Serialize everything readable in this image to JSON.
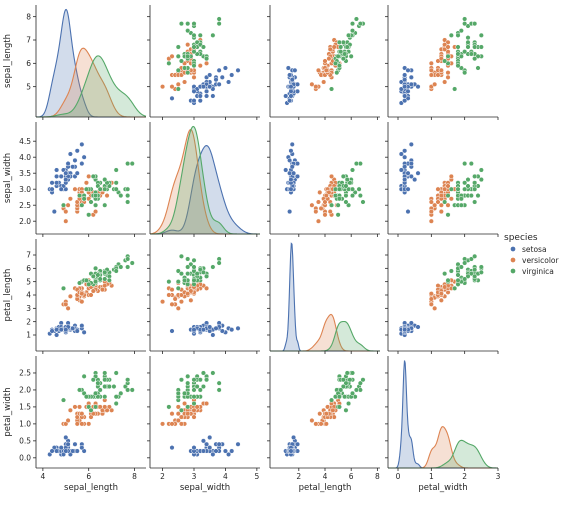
{
  "chart_data": {
    "type": "pairplot",
    "variables": [
      "sepal_length",
      "sepal_width",
      "petal_length",
      "petal_width"
    ],
    "axis_ticks": {
      "sepal_length": [
        4,
        6,
        8
      ],
      "sepal_width": [
        2,
        3,
        4,
        5
      ],
      "petal_length": [
        2,
        4,
        6,
        8
      ],
      "petal_width": [
        0,
        1,
        2,
        3
      ]
    },
    "axis_ticks_y": {
      "sepal_length": [
        5,
        6,
        7,
        8
      ],
      "sepal_width": [
        2.0,
        2.5,
        3.0,
        3.5,
        4.0,
        4.5
      ],
      "petal_length": [
        1,
        2,
        3,
        4,
        5,
        6,
        7
      ],
      "petal_width": [
        0.0,
        0.5,
        1.0,
        1.5,
        2.0,
        2.5
      ]
    },
    "axis_ranges": {
      "sepal_length": [
        3.7,
        8.5
      ],
      "sepal_width": [
        1.6,
        5.1
      ],
      "petal_length": [
        -0.2,
        8.2
      ],
      "petal_width": [
        -0.3,
        3.0
      ]
    },
    "diagonal_kind": "kde",
    "offdiagonal_kind": "scatter",
    "legend": {
      "title": "species",
      "placement": "right",
      "entries": [
        {
          "name": "setosa",
          "color": "#4c72b0"
        },
        {
          "name": "versicolor",
          "color": "#dd8452"
        },
        {
          "name": "virginica",
          "color": "#55a868"
        }
      ]
    },
    "series": [
      {
        "name": "setosa",
        "color": "#4c72b0",
        "points": [
          [
            5.1,
            3.5,
            1.4,
            0.2
          ],
          [
            4.9,
            3.0,
            1.4,
            0.2
          ],
          [
            4.7,
            3.2,
            1.3,
            0.2
          ],
          [
            4.6,
            3.1,
            1.5,
            0.2
          ],
          [
            5.0,
            3.6,
            1.4,
            0.2
          ],
          [
            5.4,
            3.9,
            1.7,
            0.4
          ],
          [
            4.6,
            3.4,
            1.4,
            0.3
          ],
          [
            5.0,
            3.4,
            1.5,
            0.2
          ],
          [
            4.4,
            2.9,
            1.4,
            0.2
          ],
          [
            4.9,
            3.1,
            1.5,
            0.1
          ],
          [
            5.4,
            3.7,
            1.5,
            0.2
          ],
          [
            4.8,
            3.4,
            1.6,
            0.2
          ],
          [
            4.8,
            3.0,
            1.4,
            0.1
          ],
          [
            4.3,
            3.0,
            1.1,
            0.1
          ],
          [
            5.8,
            4.0,
            1.2,
            0.2
          ],
          [
            5.7,
            4.4,
            1.5,
            0.4
          ],
          [
            5.4,
            3.9,
            1.3,
            0.4
          ],
          [
            5.1,
            3.5,
            1.4,
            0.3
          ],
          [
            5.7,
            3.8,
            1.7,
            0.3
          ],
          [
            5.1,
            3.8,
            1.5,
            0.3
          ],
          [
            5.4,
            3.4,
            1.7,
            0.2
          ],
          [
            5.1,
            3.7,
            1.5,
            0.4
          ],
          [
            4.6,
            3.6,
            1.0,
            0.2
          ],
          [
            5.1,
            3.3,
            1.7,
            0.5
          ],
          [
            4.8,
            3.4,
            1.9,
            0.2
          ],
          [
            5.0,
            3.0,
            1.6,
            0.2
          ],
          [
            5.0,
            3.4,
            1.6,
            0.4
          ],
          [
            5.2,
            3.5,
            1.5,
            0.2
          ],
          [
            5.2,
            3.4,
            1.4,
            0.2
          ],
          [
            4.7,
            3.2,
            1.6,
            0.2
          ],
          [
            4.8,
            3.1,
            1.6,
            0.2
          ],
          [
            5.4,
            3.4,
            1.5,
            0.4
          ],
          [
            5.2,
            4.1,
            1.5,
            0.1
          ],
          [
            5.5,
            4.2,
            1.4,
            0.2
          ],
          [
            4.9,
            3.1,
            1.5,
            0.2
          ],
          [
            5.0,
            3.2,
            1.2,
            0.2
          ],
          [
            5.5,
            3.5,
            1.3,
            0.2
          ],
          [
            4.9,
            3.6,
            1.4,
            0.1
          ],
          [
            4.4,
            3.0,
            1.3,
            0.2
          ],
          [
            5.1,
            3.4,
            1.5,
            0.2
          ],
          [
            5.0,
            3.5,
            1.3,
            0.3
          ],
          [
            4.5,
            2.3,
            1.3,
            0.3
          ],
          [
            4.4,
            3.2,
            1.3,
            0.2
          ],
          [
            5.0,
            3.5,
            1.6,
            0.6
          ],
          [
            5.1,
            3.8,
            1.9,
            0.4
          ],
          [
            4.8,
            3.0,
            1.4,
            0.3
          ],
          [
            5.1,
            3.8,
            1.6,
            0.2
          ],
          [
            4.6,
            3.2,
            1.4,
            0.2
          ],
          [
            5.3,
            3.7,
            1.5,
            0.2
          ],
          [
            5.0,
            3.3,
            1.4,
            0.2
          ]
        ]
      },
      {
        "name": "versicolor",
        "color": "#dd8452",
        "points": [
          [
            7.0,
            3.2,
            4.7,
            1.4
          ],
          [
            6.4,
            3.2,
            4.5,
            1.5
          ],
          [
            6.9,
            3.1,
            4.9,
            1.5
          ],
          [
            5.5,
            2.3,
            4.0,
            1.3
          ],
          [
            6.5,
            2.8,
            4.6,
            1.5
          ],
          [
            5.7,
            2.8,
            4.5,
            1.3
          ],
          [
            6.3,
            3.3,
            4.7,
            1.6
          ],
          [
            4.9,
            2.4,
            3.3,
            1.0
          ],
          [
            6.6,
            2.9,
            4.6,
            1.3
          ],
          [
            5.2,
            2.7,
            3.9,
            1.4
          ],
          [
            5.0,
            2.0,
            3.5,
            1.0
          ],
          [
            5.9,
            3.0,
            4.2,
            1.5
          ],
          [
            6.0,
            2.2,
            4.0,
            1.0
          ],
          [
            6.1,
            2.9,
            4.7,
            1.4
          ],
          [
            5.6,
            2.9,
            3.6,
            1.3
          ],
          [
            6.7,
            3.1,
            4.4,
            1.4
          ],
          [
            5.6,
            3.0,
            4.5,
            1.5
          ],
          [
            5.8,
            2.7,
            4.1,
            1.0
          ],
          [
            6.2,
            2.2,
            4.5,
            1.5
          ],
          [
            5.6,
            2.5,
            3.9,
            1.1
          ],
          [
            5.9,
            3.2,
            4.8,
            1.8
          ],
          [
            6.1,
            2.8,
            4.0,
            1.3
          ],
          [
            6.3,
            2.5,
            4.9,
            1.5
          ],
          [
            6.1,
            2.8,
            4.7,
            1.2
          ],
          [
            6.4,
            2.9,
            4.3,
            1.3
          ],
          [
            6.6,
            3.0,
            4.4,
            1.4
          ],
          [
            6.8,
            2.8,
            4.8,
            1.4
          ],
          [
            6.7,
            3.0,
            5.0,
            1.7
          ],
          [
            6.0,
            2.9,
            4.5,
            1.5
          ],
          [
            5.7,
            2.6,
            3.5,
            1.0
          ],
          [
            5.5,
            2.4,
            3.8,
            1.1
          ],
          [
            5.5,
            2.4,
            3.7,
            1.0
          ],
          [
            5.8,
            2.7,
            3.9,
            1.2
          ],
          [
            6.0,
            2.7,
            5.1,
            1.6
          ],
          [
            5.4,
            3.0,
            4.5,
            1.5
          ],
          [
            6.0,
            3.4,
            4.5,
            1.6
          ],
          [
            6.7,
            3.1,
            4.7,
            1.5
          ],
          [
            6.3,
            2.3,
            4.4,
            1.3
          ],
          [
            5.6,
            3.0,
            4.1,
            1.3
          ],
          [
            5.5,
            2.5,
            4.0,
            1.3
          ],
          [
            5.5,
            2.6,
            4.4,
            1.2
          ],
          [
            6.1,
            3.0,
            4.6,
            1.4
          ],
          [
            5.8,
            2.6,
            4.0,
            1.2
          ],
          [
            5.0,
            2.3,
            3.3,
            1.0
          ],
          [
            5.6,
            2.7,
            4.2,
            1.3
          ],
          [
            5.7,
            3.0,
            4.2,
            1.2
          ],
          [
            5.7,
            2.9,
            4.2,
            1.3
          ],
          [
            6.2,
            2.9,
            4.3,
            1.3
          ],
          [
            5.1,
            2.5,
            3.0,
            1.1
          ],
          [
            5.7,
            2.8,
            4.1,
            1.3
          ]
        ]
      },
      {
        "name": "virginica",
        "color": "#55a868",
        "points": [
          [
            6.3,
            3.3,
            6.0,
            2.5
          ],
          [
            5.8,
            2.7,
            5.1,
            1.9
          ],
          [
            7.1,
            3.0,
            5.9,
            2.1
          ],
          [
            6.3,
            2.9,
            5.6,
            1.8
          ],
          [
            6.5,
            3.0,
            5.8,
            2.2
          ],
          [
            7.6,
            3.0,
            6.6,
            2.1
          ],
          [
            4.9,
            2.5,
            4.5,
            1.7
          ],
          [
            7.3,
            2.9,
            6.3,
            1.8
          ],
          [
            6.7,
            2.5,
            5.8,
            1.8
          ],
          [
            7.2,
            3.6,
            6.1,
            2.5
          ],
          [
            6.5,
            3.2,
            5.1,
            2.0
          ],
          [
            6.4,
            2.7,
            5.3,
            1.9
          ],
          [
            6.8,
            3.0,
            5.5,
            2.1
          ],
          [
            5.7,
            2.5,
            5.0,
            2.0
          ],
          [
            5.8,
            2.8,
            5.1,
            2.4
          ],
          [
            6.4,
            3.2,
            5.3,
            2.3
          ],
          [
            6.5,
            3.0,
            5.5,
            1.8
          ],
          [
            7.7,
            3.8,
            6.7,
            2.2
          ],
          [
            7.7,
            2.6,
            6.9,
            2.3
          ],
          [
            6.0,
            2.2,
            5.0,
            1.5
          ],
          [
            6.9,
            3.2,
            5.7,
            2.3
          ],
          [
            5.6,
            2.8,
            4.9,
            2.0
          ],
          [
            7.7,
            2.8,
            6.7,
            2.0
          ],
          [
            6.3,
            2.7,
            4.9,
            1.8
          ],
          [
            6.7,
            3.3,
            5.7,
            2.1
          ],
          [
            7.2,
            3.2,
            6.0,
            1.8
          ],
          [
            6.2,
            2.8,
            4.8,
            1.8
          ],
          [
            6.1,
            3.0,
            4.9,
            1.8
          ],
          [
            6.4,
            2.8,
            5.6,
            2.1
          ],
          [
            7.2,
            3.0,
            5.8,
            1.6
          ],
          [
            7.4,
            2.8,
            6.1,
            1.9
          ],
          [
            7.9,
            3.8,
            6.4,
            2.0
          ],
          [
            6.4,
            2.8,
            5.6,
            2.2
          ],
          [
            6.3,
            2.8,
            5.1,
            1.5
          ],
          [
            6.1,
            2.6,
            5.6,
            1.4
          ],
          [
            7.7,
            3.0,
            6.1,
            2.3
          ],
          [
            6.3,
            3.4,
            5.6,
            2.4
          ],
          [
            6.4,
            3.1,
            5.5,
            1.8
          ],
          [
            6.0,
            3.0,
            4.8,
            1.8
          ],
          [
            6.9,
            3.1,
            5.4,
            2.1
          ],
          [
            6.7,
            3.1,
            5.6,
            2.4
          ],
          [
            6.9,
            3.1,
            5.1,
            2.3
          ],
          [
            5.8,
            2.7,
            5.1,
            1.9
          ],
          [
            6.8,
            3.2,
            5.9,
            2.3
          ],
          [
            6.7,
            3.3,
            5.7,
            2.5
          ],
          [
            6.7,
            3.0,
            5.2,
            2.3
          ],
          [
            6.3,
            2.5,
            5.0,
            1.9
          ],
          [
            6.5,
            3.0,
            5.2,
            2.0
          ],
          [
            6.2,
            3.4,
            5.4,
            2.3
          ],
          [
            5.9,
            3.0,
            5.1,
            1.8
          ]
        ]
      }
    ]
  }
}
